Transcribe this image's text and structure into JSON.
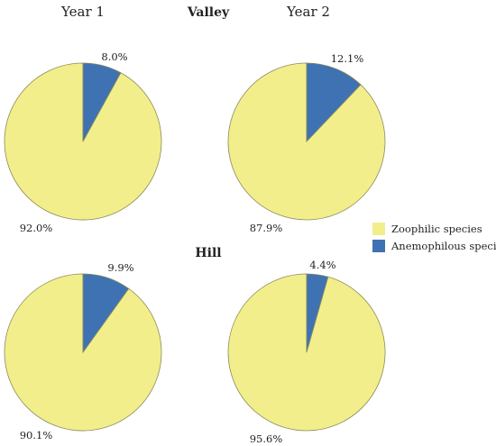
{
  "column_headers": [
    "Year 1",
    "Year 2"
  ],
  "colors": {
    "zoophilic": "#F2EE8B",
    "anemophilous": "#3F72B3",
    "outline": "#8C8C5C"
  },
  "chart_data": [
    {
      "type": "pie",
      "group": "Valley",
      "column": "Year 1",
      "slices": [
        {
          "name": "Anemophilous species",
          "value": 8.0,
          "label": "8.0%"
        },
        {
          "name": "Zoophilic species",
          "value": 92.0,
          "label": "92.0%"
        }
      ]
    },
    {
      "type": "pie",
      "group": "Valley",
      "column": "Year 2",
      "slices": [
        {
          "name": "Anemophilous species",
          "value": 12.1,
          "label": "12.1%"
        },
        {
          "name": "Zoophilic species",
          "value": 87.9,
          "label": "87.9%"
        }
      ]
    },
    {
      "type": "pie",
      "group": "Hill",
      "column": "Year 1",
      "slices": [
        {
          "name": "Anemophilous species",
          "value": 9.9,
          "label": "9.9%"
        },
        {
          "name": "Zoophilic species",
          "value": 90.1,
          "label": "90.1%"
        }
      ]
    },
    {
      "type": "pie",
      "group": "Hill",
      "column": "Year 2",
      "slices": [
        {
          "name": "Anemophilous species",
          "value": 4.4,
          "label": "4.4%"
        },
        {
          "name": "Zoophilic species",
          "value": 95.6,
          "label": "95.6%"
        }
      ]
    }
  ],
  "group_titles": [
    "Valley",
    "Hill"
  ],
  "legend": {
    "entries": [
      {
        "name": "Zoophilic species",
        "color": "#F2EE8B"
      },
      {
        "name": "Anemophilous species",
        "color": "#3F72B3"
      }
    ],
    "placement": "right"
  }
}
